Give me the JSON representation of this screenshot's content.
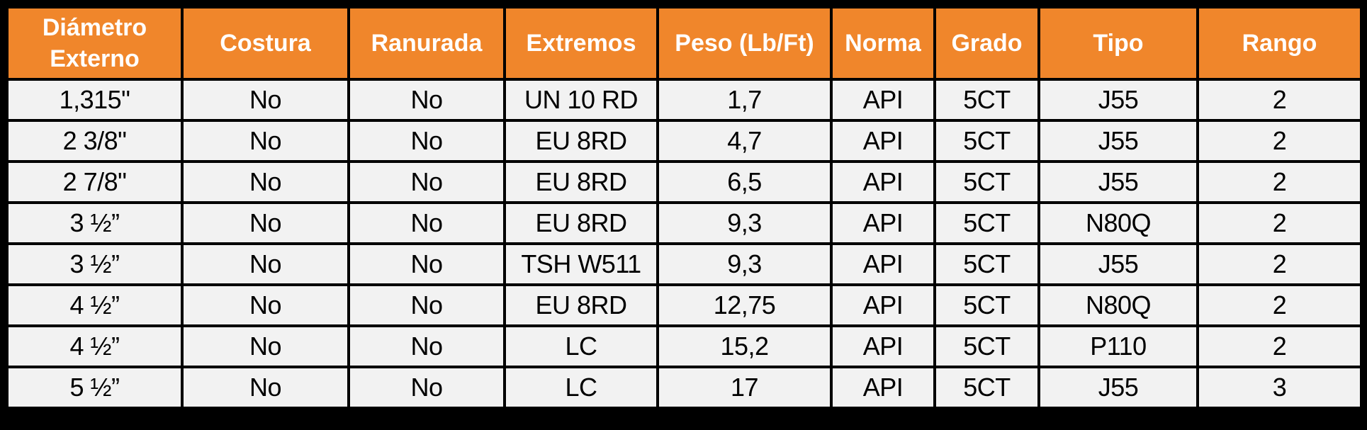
{
  "page": {
    "background_color": "#000000"
  },
  "table_style": {
    "header_bg": "#F0862B",
    "header_text_color": "#FFFFFF",
    "row_bg": "#F2F2F2",
    "body_text_color": "#000000",
    "border_color": "#000000"
  },
  "chart_data": {
    "type": "table",
    "title": "",
    "columns": [
      "Diámetro Externo",
      "Costura",
      "Ranurada",
      "Extremos",
      "Peso (Lb/Ft)",
      "Norma",
      "Grado",
      "Tipo",
      "Rango"
    ],
    "rows": [
      [
        "1,315\"",
        "No",
        "No",
        "UN 10 RD",
        "1,7",
        "API",
        "5CT",
        "J55",
        "2"
      ],
      [
        "2 3/8\"",
        "No",
        "No",
        "EU 8RD",
        "4,7",
        "API",
        "5CT",
        "J55",
        "2"
      ],
      [
        "2 7/8\"",
        "No",
        "No",
        "EU 8RD",
        "6,5",
        "API",
        "5CT",
        "J55",
        "2"
      ],
      [
        "3 ½”",
        "No",
        "No",
        "EU 8RD",
        "9,3",
        "API",
        "5CT",
        "N80Q",
        "2"
      ],
      [
        "3 ½”",
        "No",
        "No",
        "TSH W511",
        "9,3",
        "API",
        "5CT",
        "J55",
        "2"
      ],
      [
        "4 ½”",
        "No",
        "No",
        "EU 8RD",
        "12,75",
        "API",
        "5CT",
        "N80Q",
        "2"
      ],
      [
        "4 ½”",
        "No",
        "No",
        "LC",
        "15,2",
        "API",
        "5CT",
        "P110",
        "2"
      ],
      [
        "5 ½”",
        "No",
        "No",
        "LC",
        "17",
        "API",
        "5CT",
        "J55",
        "3"
      ]
    ]
  }
}
